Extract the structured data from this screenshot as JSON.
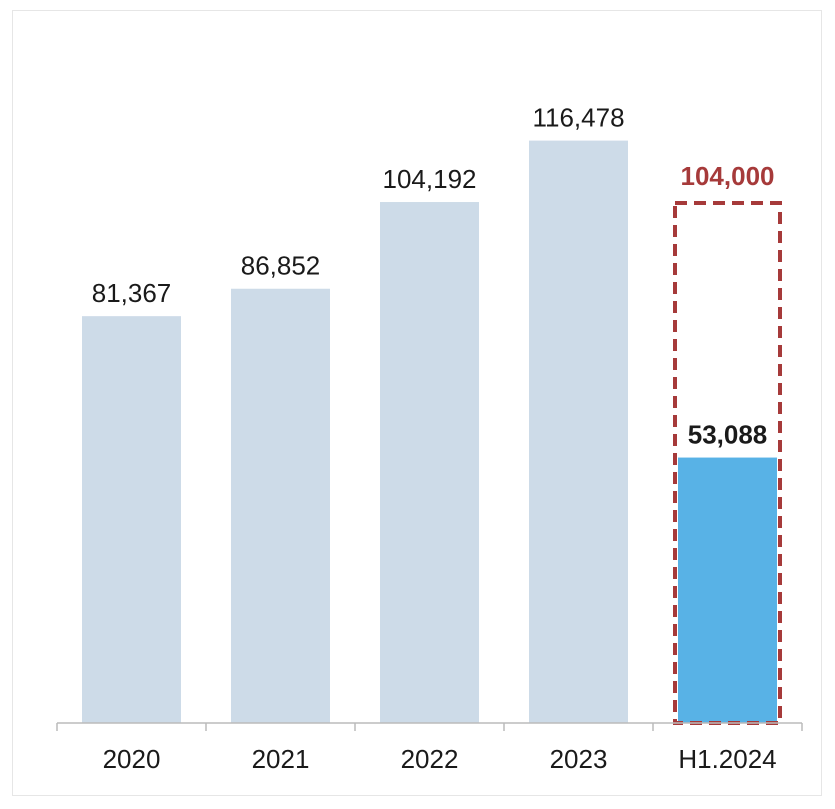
{
  "chart_data": {
    "type": "bar",
    "title": "",
    "xlabel": "",
    "ylabel": "",
    "categories": [
      "2020",
      "2021",
      "2022",
      "2023",
      "H1.2024"
    ],
    "values": [
      81367,
      86852,
      104192,
      116478,
      53088
    ],
    "value_labels": [
      "81,367",
      "86,852",
      "104,192",
      "116,478",
      "53,088"
    ],
    "target": {
      "category": "H1.2024",
      "value": 104000,
      "label": "104,000",
      "style": "dashed-outline"
    },
    "ylim": [
      0,
      130000
    ],
    "grid": false,
    "legend": "none",
    "colors": {
      "bar": "#cddbe8",
      "highlight_bar": "#58b2e6",
      "target_outline": "#a63a3a",
      "axis": "#bbbbbb",
      "text": "#1a1a1a"
    }
  }
}
